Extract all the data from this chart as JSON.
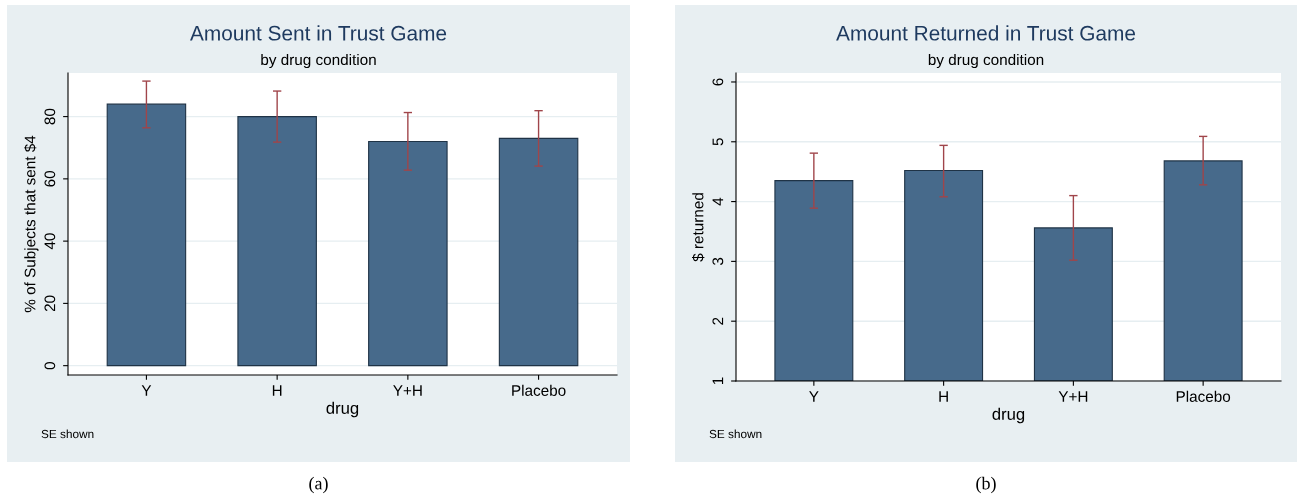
{
  "chart_data": [
    {
      "type": "bar",
      "title": "Amount Sent in Trust Game",
      "subtitle": "by drug condition",
      "xlabel": "drug",
      "ylabel": "% of Subjects that sent $4",
      "categories": [
        "Y",
        "H",
        "Y+H",
        "Placebo"
      ],
      "series": [
        {
          "color": "#476a8b",
          "values": [
            84,
            80,
            72,
            73
          ],
          "errors": [
            [
              76.4,
              91.4
            ],
            [
              71.8,
              88.2
            ],
            [
              62.8,
              81.3
            ],
            [
              64.1,
              81.9
            ]
          ]
        }
      ],
      "ylim": [
        -3,
        94
      ],
      "yticks": [
        0,
        20,
        40,
        60,
        80
      ],
      "grid": "y",
      "legend": false,
      "annotations": [
        "SE shown",
        "(a)"
      ]
    },
    {
      "type": "bar",
      "title": "Amount Returned in Trust Game",
      "subtitle": "by drug condition",
      "xlabel": "drug",
      "ylabel": "$ returned",
      "categories": [
        "Y",
        "H",
        "Y+H",
        "Placebo"
      ],
      "series": [
        {
          "color": "#476a8b",
          "values": [
            4.35,
            4.52,
            3.56,
            4.68
          ],
          "errors": [
            [
              3.89,
              4.81
            ],
            [
              4.08,
              4.94
            ],
            [
              3.02,
              4.1
            ],
            [
              4.28,
              5.09
            ]
          ]
        }
      ],
      "ylim": [
        1,
        6.15
      ],
      "yticks": [
        1,
        2,
        3,
        4,
        5,
        6
      ],
      "grid": "y",
      "legend": false,
      "annotations": [
        "SE shown",
        "(b)"
      ]
    }
  ]
}
